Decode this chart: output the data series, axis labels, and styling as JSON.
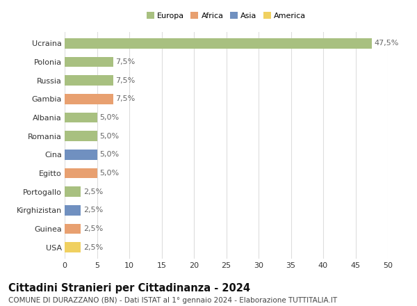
{
  "countries": [
    "Ucraina",
    "Polonia",
    "Russia",
    "Gambia",
    "Albania",
    "Romania",
    "Cina",
    "Egitto",
    "Portogallo",
    "Kirghizistan",
    "Guinea",
    "USA"
  ],
  "values": [
    47.5,
    7.5,
    7.5,
    7.5,
    5.0,
    5.0,
    5.0,
    5.0,
    2.5,
    2.5,
    2.5,
    2.5
  ],
  "labels": [
    "47,5%",
    "7,5%",
    "7,5%",
    "7,5%",
    "5,0%",
    "5,0%",
    "5,0%",
    "5,0%",
    "2,5%",
    "2,5%",
    "2,5%",
    "2,5%"
  ],
  "colors": [
    "#a8c080",
    "#a8c080",
    "#a8c080",
    "#e8a070",
    "#a8c080",
    "#a8c080",
    "#7090c0",
    "#e8a070",
    "#a8c080",
    "#7090c0",
    "#e8a070",
    "#f0d060"
  ],
  "legend_labels": [
    "Europa",
    "Africa",
    "Asia",
    "America"
  ],
  "legend_colors": [
    "#a8c080",
    "#e8a070",
    "#7090c0",
    "#f0d060"
  ],
  "xlim": [
    0,
    50
  ],
  "xticks": [
    0,
    5,
    10,
    15,
    20,
    25,
    30,
    35,
    40,
    45,
    50
  ],
  "title": "Cittadini Stranieri per Cittadinanza - 2024",
  "subtitle": "COMUNE DI DURAZZANO (BN) - Dati ISTAT al 1° gennaio 2024 - Elaborazione TUTTITALIA.IT",
  "title_fontsize": 10.5,
  "subtitle_fontsize": 7.5,
  "label_fontsize": 8,
  "tick_fontsize": 8,
  "bg_color": "#ffffff",
  "grid_color": "#dddddd",
  "bar_height": 0.55
}
